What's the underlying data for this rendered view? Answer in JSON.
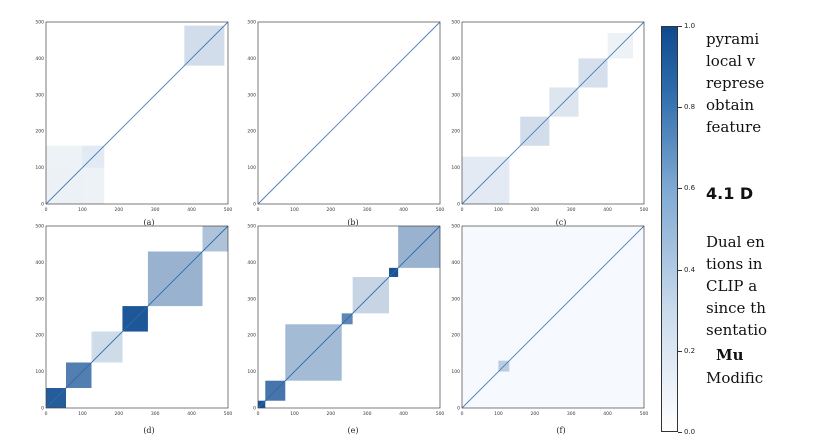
{
  "figure": {
    "panels": [
      {
        "label": "(a)",
        "blocks": [],
        "diag_color": "#4a7db8"
      },
      {
        "label": "(b)",
        "blocks": [],
        "diag_color": "#4a7db8"
      },
      {
        "label": "(c)",
        "blocks": [],
        "diag_color": "#4a7db8"
      },
      {
        "label": "(d)",
        "blocks": [],
        "diag_color": "#2f6aa8"
      },
      {
        "label": "(e)",
        "blocks": [],
        "diag_color": "#2f6aa8"
      },
      {
        "label": "(f)",
        "blocks": [],
        "diag_color": "#4a7db8"
      }
    ],
    "axis_ticks_x": [
      "0",
      "100",
      "200",
      "300",
      "400",
      "500"
    ],
    "axis_ticks_y": [
      "0",
      "100",
      "200",
      "300",
      "400",
      "500"
    ],
    "colorbar": {
      "ticks": [
        "0.0",
        "0.2",
        "0.4",
        "0.6",
        "0.8",
        "1.0"
      ],
      "colormap": "Blues"
    }
  },
  "text": {
    "lines": [
      "pyrami",
      "local v",
      "represe",
      "obtain",
      "feature"
    ],
    "heading": "4.1   D",
    "lines2": [
      "Dual en",
      "tions in",
      "CLIP a",
      "since th",
      "sentatio"
    ],
    "bold_line": "Mu",
    "last_line": "Modific"
  }
}
